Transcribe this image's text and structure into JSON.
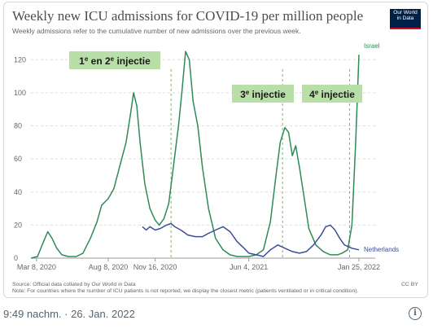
{
  "tweet": {
    "timestamp": "9:49 nachm. · 26. Jan. 2022"
  },
  "logo": {
    "line1": "Our World",
    "line2": "in Data"
  },
  "source": "Source: Official data collated by Our World in Data",
  "note": "Note: For countries where the number of ICU patients is not reported, we display the closest metric (patients ventilated or in critical condition).",
  "license": "CC BY",
  "colors": {
    "israel": "#2e8b57",
    "netherlands": "#3b4d9b",
    "annotation_bg": "#b9dfa8",
    "annotation_line": "#7cbf46"
  },
  "chart_data": {
    "type": "line",
    "title": "Weekly new ICU admissions for COVID-19 per million people",
    "subtitle": "Weekly admissions refer to the cumulative number of new admissions over the previous week.",
    "ylim": [
      0,
      130
    ],
    "y_ticks": [
      0,
      20,
      40,
      60,
      80,
      100,
      120
    ],
    "x_ticks": [
      "Mar 8, 2020",
      "Aug 8, 2020",
      "Nov 16, 2020",
      "Jun 4, 2021",
      "Jan 25, 2022"
    ],
    "xlim": [
      "2020-02-25",
      "2022-01-25"
    ],
    "series": [
      {
        "name": "Israel",
        "points": [
          [
            "2020-02-25",
            0
          ],
          [
            "2020-03-10",
            1
          ],
          [
            "2020-03-20",
            8
          ],
          [
            "2020-04-01",
            16
          ],
          [
            "2020-04-10",
            12
          ],
          [
            "2020-04-20",
            6
          ],
          [
            "2020-05-01",
            2
          ],
          [
            "2020-05-15",
            1
          ],
          [
            "2020-06-01",
            1
          ],
          [
            "2020-06-15",
            3
          ],
          [
            "2020-07-01",
            12
          ],
          [
            "2020-07-15",
            22
          ],
          [
            "2020-07-25",
            32
          ],
          [
            "2020-08-08",
            36
          ],
          [
            "2020-08-20",
            42
          ],
          [
            "2020-09-01",
            55
          ],
          [
            "2020-09-15",
            70
          ],
          [
            "2020-09-25",
            88
          ],
          [
            "2020-10-01",
            100
          ],
          [
            "2020-10-08",
            92
          ],
          [
            "2020-10-15",
            70
          ],
          [
            "2020-10-25",
            45
          ],
          [
            "2020-11-05",
            30
          ],
          [
            "2020-11-16",
            23
          ],
          [
            "2020-11-25",
            20
          ],
          [
            "2020-12-05",
            24
          ],
          [
            "2020-12-15",
            33
          ],
          [
            "2020-12-25",
            55
          ],
          [
            "2021-01-05",
            80
          ],
          [
            "2021-01-12",
            100
          ],
          [
            "2021-01-20",
            125
          ],
          [
            "2021-01-28",
            120
          ],
          [
            "2021-02-05",
            95
          ],
          [
            "2021-02-15",
            80
          ],
          [
            "2021-02-25",
            55
          ],
          [
            "2021-03-10",
            30
          ],
          [
            "2021-03-25",
            12
          ],
          [
            "2021-04-10",
            5
          ],
          [
            "2021-04-25",
            2
          ],
          [
            "2021-05-10",
            1
          ],
          [
            "2021-06-04",
            1
          ],
          [
            "2021-06-20",
            2
          ],
          [
            "2021-07-05",
            5
          ],
          [
            "2021-07-20",
            22
          ],
          [
            "2021-08-01",
            50
          ],
          [
            "2021-08-10",
            70
          ],
          [
            "2021-08-20",
            79
          ],
          [
            "2021-08-28",
            76
          ],
          [
            "2021-09-05",
            62
          ],
          [
            "2021-09-12",
            68
          ],
          [
            "2021-09-20",
            55
          ],
          [
            "2021-10-01",
            35
          ],
          [
            "2021-10-10",
            18
          ],
          [
            "2021-10-25",
            8
          ],
          [
            "2021-11-10",
            4
          ],
          [
            "2021-11-25",
            2
          ],
          [
            "2021-12-10",
            2
          ],
          [
            "2021-12-20",
            3
          ],
          [
            "2022-01-01",
            5
          ],
          [
            "2022-01-10",
            20
          ],
          [
            "2022-01-18",
            70
          ],
          [
            "2022-01-25",
            123
          ]
        ]
      },
      {
        "name": "Netherlands",
        "points": [
          [
            "2020-10-20",
            19
          ],
          [
            "2020-10-28",
            17
          ],
          [
            "2020-11-05",
            19
          ],
          [
            "2020-11-16",
            17
          ],
          [
            "2020-11-28",
            18
          ],
          [
            "2020-12-10",
            20
          ],
          [
            "2020-12-20",
            21
          ],
          [
            "2020-12-28",
            19
          ],
          [
            "2021-01-10",
            17
          ],
          [
            "2021-01-25",
            14
          ],
          [
            "2021-02-10",
            13
          ],
          [
            "2021-02-25",
            13
          ],
          [
            "2021-03-10",
            15
          ],
          [
            "2021-03-25",
            17
          ],
          [
            "2021-04-10",
            19
          ],
          [
            "2021-04-25",
            16
          ],
          [
            "2021-05-10",
            10
          ],
          [
            "2021-05-25",
            6
          ],
          [
            "2021-06-04",
            3
          ],
          [
            "2021-06-20",
            2
          ],
          [
            "2021-07-05",
            1
          ],
          [
            "2021-07-20",
            5
          ],
          [
            "2021-08-05",
            8
          ],
          [
            "2021-08-20",
            6
          ],
          [
            "2021-09-05",
            4
          ],
          [
            "2021-09-20",
            3
          ],
          [
            "2021-10-05",
            4
          ],
          [
            "2021-10-20",
            8
          ],
          [
            "2021-11-05",
            14
          ],
          [
            "2021-11-15",
            19
          ],
          [
            "2021-11-25",
            20
          ],
          [
            "2021-12-05",
            17
          ],
          [
            "2021-12-15",
            12
          ],
          [
            "2021-12-25",
            8
          ],
          [
            "2022-01-10",
            6
          ],
          [
            "2022-01-25",
            5
          ]
        ]
      }
    ],
    "annotations": [
      {
        "label_base": "1",
        "label_sup": "e",
        "label_mid": " en 2",
        "label_sup2": "e",
        "label_end": " injectie",
        "date": "2020-12-20"
      },
      {
        "label_base": "3",
        "label_sup": "e",
        "label_mid": " injectie",
        "label_sup2": "",
        "label_end": "",
        "date": "2021-08-15"
      },
      {
        "label_base": "4",
        "label_sup": "e",
        "label_mid": " injectie",
        "label_sup2": "",
        "label_end": "",
        "date": "2022-01-05"
      }
    ]
  }
}
